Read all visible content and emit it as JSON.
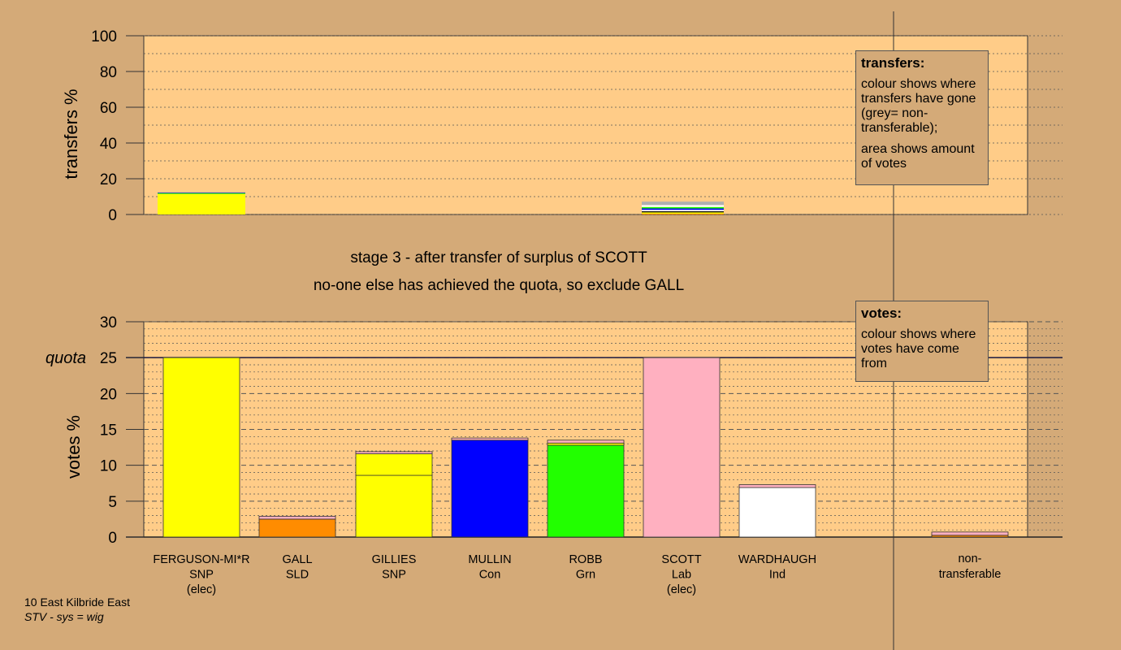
{
  "stage_title": "stage 3 - after transfer of surplus of SCOTT",
  "stage_note": "no-one else has achieved the quota, so exclude GALL",
  "transfers_legend": {
    "title": "transfers:",
    "text1": "colour shows where transfers have gone (grey= non-transferable);",
    "text2": "area shows amount of votes"
  },
  "votes_legend": {
    "title": "votes:",
    "text1": "colour shows where votes have come from"
  },
  "footer": {
    "ward": "10 East Kilbride East",
    "system": "STV - sys = wig"
  },
  "colors": {
    "background": "#d4aa78",
    "plot": "#ffcc88",
    "SNP": "#ffff00",
    "SLD": "#ff8c00",
    "Con": "#0000ff",
    "Grn": "#22ff00",
    "Lab": "#ffb0c0",
    "Ind": "#ffffff"
  },
  "chart_data": [
    {
      "type": "bar",
      "name": "transfers",
      "ylabel": "transfers %",
      "ylim": [
        0,
        100
      ],
      "yticks": [
        0,
        20,
        40,
        60,
        80,
        100
      ],
      "bars": [
        {
          "category": "FERGUSON-MI*R",
          "segments": [
            {
              "color": "#ffff00",
              "value": 11.5
            },
            {
              "color": "#22ff00",
              "value": 0.5
            },
            {
              "color": "#0000ff",
              "value": 0.3
            }
          ]
        },
        {
          "category": "SCOTT",
          "segments": [
            {
              "color": "#ff8c00",
              "value": 0.5
            },
            {
              "color": "#ffff00",
              "value": 0.7
            },
            {
              "color": "#000000",
              "value": 0.6
            },
            {
              "color": "#ffffff",
              "value": 0.8
            },
            {
              "color": "#0000ff",
              "value": 0.8
            },
            {
              "color": "#22ff00",
              "value": 0.8
            },
            {
              "color": "#ffffff",
              "value": 1.1
            },
            {
              "color": "#b0b0b0",
              "value": 1.9
            }
          ]
        }
      ]
    },
    {
      "type": "bar",
      "name": "votes",
      "ylabel": "votes %",
      "ylim": [
        0,
        30
      ],
      "yticks": [
        0,
        5,
        10,
        15,
        20,
        25,
        30
      ],
      "quota": 25,
      "quota_label": "quota",
      "categories": [
        "FERGUSON-MI*R",
        "GALL",
        "GILLIES",
        "MULLIN",
        "ROBB",
        "SCOTT",
        "WARDHAUGH",
        "non-transferable"
      ],
      "parties": [
        "SNP",
        "SLD",
        "SNP",
        "Con",
        "Grn",
        "Lab",
        "Ind",
        ""
      ],
      "status": [
        "(elec)",
        "",
        "",
        "",
        "",
        "(elec)",
        "",
        ""
      ],
      "bars": [
        {
          "category": "FERGUSON-MI*R",
          "segments": [
            {
              "color": "#ffff00",
              "value": 25.0
            }
          ]
        },
        {
          "category": "GALL",
          "segments": [
            {
              "color": "#ff8c00",
              "value": 2.5
            },
            {
              "color": "#ffb0c0",
              "value": 0.4
            }
          ]
        },
        {
          "category": "GILLIES",
          "segments": [
            {
              "color": "#ffff00",
              "value": 8.6
            },
            {
              "color": "#ffff00",
              "value": 3.0
            },
            {
              "color": "#ffb0c0",
              "value": 0.3
            }
          ]
        },
        {
          "category": "MULLIN",
          "segments": [
            {
              "color": "#0000ff",
              "value": 13.5
            },
            {
              "color": "#ffb0c0",
              "value": 0.3
            }
          ]
        },
        {
          "category": "ROBB",
          "segments": [
            {
              "color": "#22ff00",
              "value": 12.8
            },
            {
              "color": "#ffff00",
              "value": 0.3
            },
            {
              "color": "#ffb0c0",
              "value": 0.4
            }
          ]
        },
        {
          "category": "SCOTT",
          "segments": [
            {
              "color": "#ffb0c0",
              "value": 25.0
            }
          ]
        },
        {
          "category": "WARDHAUGH",
          "segments": [
            {
              "color": "#ffffff",
              "value": 6.9
            },
            {
              "color": "#ffb0c0",
              "value": 0.4
            }
          ]
        },
        {
          "category": "non-transferable",
          "segments": [
            {
              "color": "#ff8c00",
              "value": 0.25
            },
            {
              "color": "#ffb0c0",
              "value": 0.45
            }
          ]
        }
      ]
    }
  ]
}
